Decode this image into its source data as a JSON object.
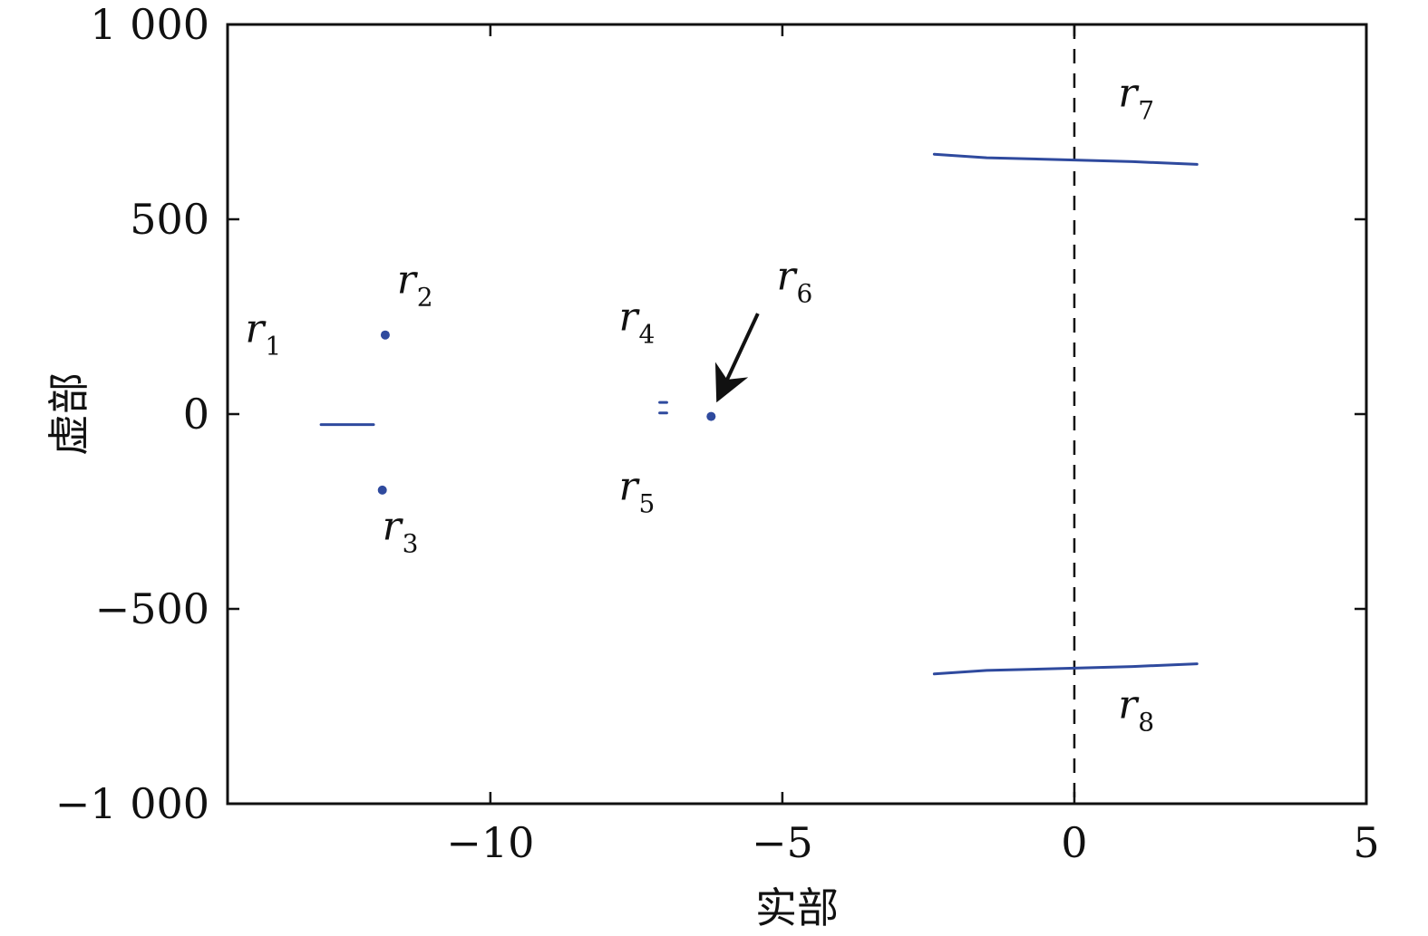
{
  "chart_data": {
    "type": "scatter",
    "xlabel": "实部",
    "ylabel": "虚部",
    "xlim": [
      -14.5,
      5
    ],
    "ylim": [
      -1000,
      1000
    ],
    "x_ticks": [
      -10,
      -5,
      0,
      5
    ],
    "y_ticks": [
      -1000,
      -500,
      0,
      500,
      1000
    ],
    "x_tick_labels": [
      "−10",
      "−5",
      "0",
      "5"
    ],
    "y_tick_labels": [
      "−1 000",
      "−500",
      "0",
      "500",
      "1 000"
    ],
    "grid": false,
    "line_color": "#2f4a9e",
    "reference_line": {
      "x": 0,
      "style": "dashed",
      "color": "#111111"
    },
    "series": [
      {
        "kind": "line",
        "label": "r",
        "sub": "1",
        "x": [
          -12.9,
          -12.0
        ],
        "y": [
          -27,
          -27
        ]
      },
      {
        "kind": "point",
        "label": "r",
        "sub": "2",
        "x": [
          -11.8
        ],
        "y": [
          203
        ]
      },
      {
        "kind": "point",
        "label": "r",
        "sub": "3",
        "x": [
          -11.85
        ],
        "y": [
          -195
        ]
      },
      {
        "kind": "line",
        "label": "r",
        "sub": "4",
        "x": [
          -7.1,
          -6.98
        ],
        "y": [
          30,
          30
        ]
      },
      {
        "kind": "line",
        "label": "r",
        "sub": "5",
        "x": [
          -7.1,
          -6.98
        ],
        "y": [
          3,
          3
        ]
      },
      {
        "kind": "point",
        "label": "r",
        "sub": "6",
        "x": [
          -6.22
        ],
        "y": [
          -6
        ]
      },
      {
        "kind": "line",
        "label": "r",
        "sub": "7",
        "x": [
          -2.4,
          -1.5,
          0,
          1.0,
          2.1
        ],
        "y": [
          667,
          658,
          652,
          648,
          641
        ]
      },
      {
        "kind": "line",
        "label": "r",
        "sub": "8",
        "x": [
          -2.4,
          -1.5,
          0,
          1.0,
          2.1
        ],
        "y": [
          -667,
          -658,
          -652,
          -648,
          -641
        ]
      }
    ],
    "annotations": [
      {
        "target": "r6",
        "arrow_from": [
          -5.42,
          258
        ],
        "arrow_to": [
          -6.05,
          55
        ]
      }
    ],
    "label_positions": [
      {
        "sub": "1",
        "x": [
          -14.2
        ],
        "y": [
          185
        ]
      },
      {
        "sub": "2",
        "x": [
          -11.6
        ],
        "y": [
          310
        ]
      },
      {
        "sub": "3",
        "x": [
          -11.85
        ],
        "y": [
          -322
        ]
      },
      {
        "sub": "4",
        "x": [
          -7.8
        ],
        "y": [
          215
        ]
      },
      {
        "sub": "5",
        "x": [
          -7.8
        ],
        "y": [
          -220
        ]
      },
      {
        "sub": "6",
        "x": [
          -5.1
        ],
        "y": [
          320
        ]
      },
      {
        "sub": "7",
        "x": [
          0.75
        ],
        "y": [
          790
        ]
      },
      {
        "sub": "8",
        "x": [
          0.75
        ],
        "y": [
          -780
        ]
      }
    ]
  }
}
